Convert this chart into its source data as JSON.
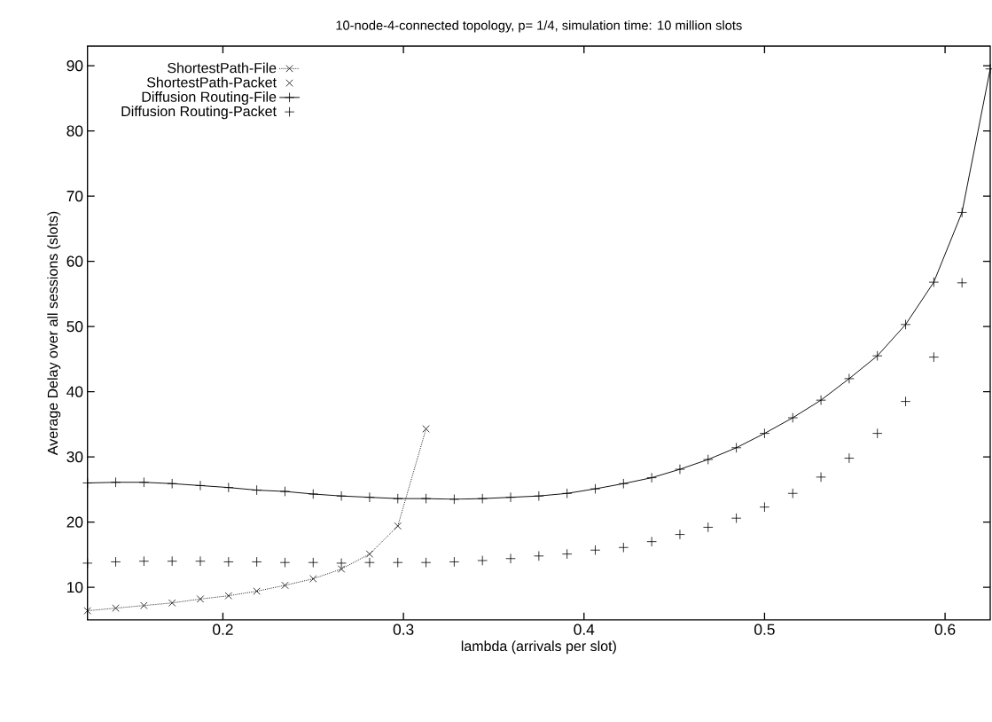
{
  "chart_data": {
    "type": "line",
    "title": "10-node-4-connected topology, p= 1/4, simulation time: 10 million slots",
    "xlabel": "lambda (arrivals per slot)",
    "ylabel": "Average Delay over all sessions (slots)",
    "xlim": [
      0.125,
      0.625
    ],
    "ylim": [
      5,
      93
    ],
    "xticks": [
      0.2,
      0.3,
      0.4,
      0.5,
      0.6
    ],
    "yticks": [
      10,
      20,
      30,
      40,
      50,
      60,
      70,
      80,
      90
    ],
    "grid": false,
    "legend": "top left",
    "series": [
      {
        "name": "ShortestPath-File",
        "marker": "cross",
        "line_style": "dotted",
        "color": "#000000",
        "x": [
          0.125,
          0.140625,
          0.15625,
          0.171875,
          0.1875,
          0.203125,
          0.21875,
          0.234375,
          0.25,
          0.265625,
          0.28125,
          0.296875,
          0.3125
        ],
        "values": [
          6.4,
          6.8,
          7.2,
          7.6,
          8.2,
          8.7,
          9.4,
          10.3,
          11.3,
          12.8,
          15.1,
          19.4,
          34.3
        ]
      },
      {
        "name": "ShortestPath-Packet",
        "type": "scatter",
        "marker": "cross",
        "color": "#000000"
      },
      {
        "name": "Diffusion Routing-File",
        "marker": "plus",
        "line_style": "solid",
        "color": "#000000",
        "x": [
          0.125,
          0.140625,
          0.15625,
          0.171875,
          0.1875,
          0.203125,
          0.21875,
          0.234375,
          0.25,
          0.265625,
          0.28125,
          0.296875,
          0.3125,
          0.328125,
          0.34375,
          0.359375,
          0.375,
          0.390625,
          0.40625,
          0.421875,
          0.4375,
          0.453125,
          0.46875,
          0.484375,
          0.5,
          0.515625,
          0.53125,
          0.546875,
          0.5625,
          0.578125,
          0.59375,
          0.609375,
          0.625
        ],
        "values": [
          26.0,
          26.1,
          26.1,
          25.9,
          25.6,
          25.3,
          24.9,
          24.7,
          24.3,
          24.0,
          23.8,
          23.6,
          23.6,
          23.5,
          23.6,
          23.8,
          24.0,
          24.4,
          25.1,
          25.9,
          26.8,
          28.1,
          29.6,
          31.4,
          33.6,
          36.0,
          38.7,
          42.0,
          45.5,
          50.3,
          56.8,
          67.5,
          89.5
        ]
      },
      {
        "name": "Diffusion Routing-Packet",
        "type": "scatter",
        "marker": "plus",
        "color": "#000000",
        "x": [
          0.125,
          0.140625,
          0.15625,
          0.171875,
          0.1875,
          0.203125,
          0.21875,
          0.234375,
          0.25,
          0.265625,
          0.28125,
          0.296875,
          0.3125,
          0.328125,
          0.34375,
          0.359375,
          0.375,
          0.390625,
          0.40625,
          0.421875,
          0.4375,
          0.453125,
          0.46875,
          0.484375,
          0.5,
          0.515625,
          0.53125,
          0.546875,
          0.5625,
          0.578125,
          0.59375,
          0.609375
        ],
        "values": [
          13.7,
          13.9,
          14.0,
          14.0,
          14.0,
          13.9,
          13.9,
          13.8,
          13.8,
          13.7,
          13.8,
          13.8,
          13.8,
          13.9,
          14.1,
          14.4,
          14.8,
          15.1,
          15.7,
          16.1,
          17.0,
          18.1,
          19.2,
          20.6,
          22.3,
          24.4,
          26.9,
          29.8,
          33.6,
          38.5,
          45.3,
          56.7
        ]
      }
    ]
  }
}
